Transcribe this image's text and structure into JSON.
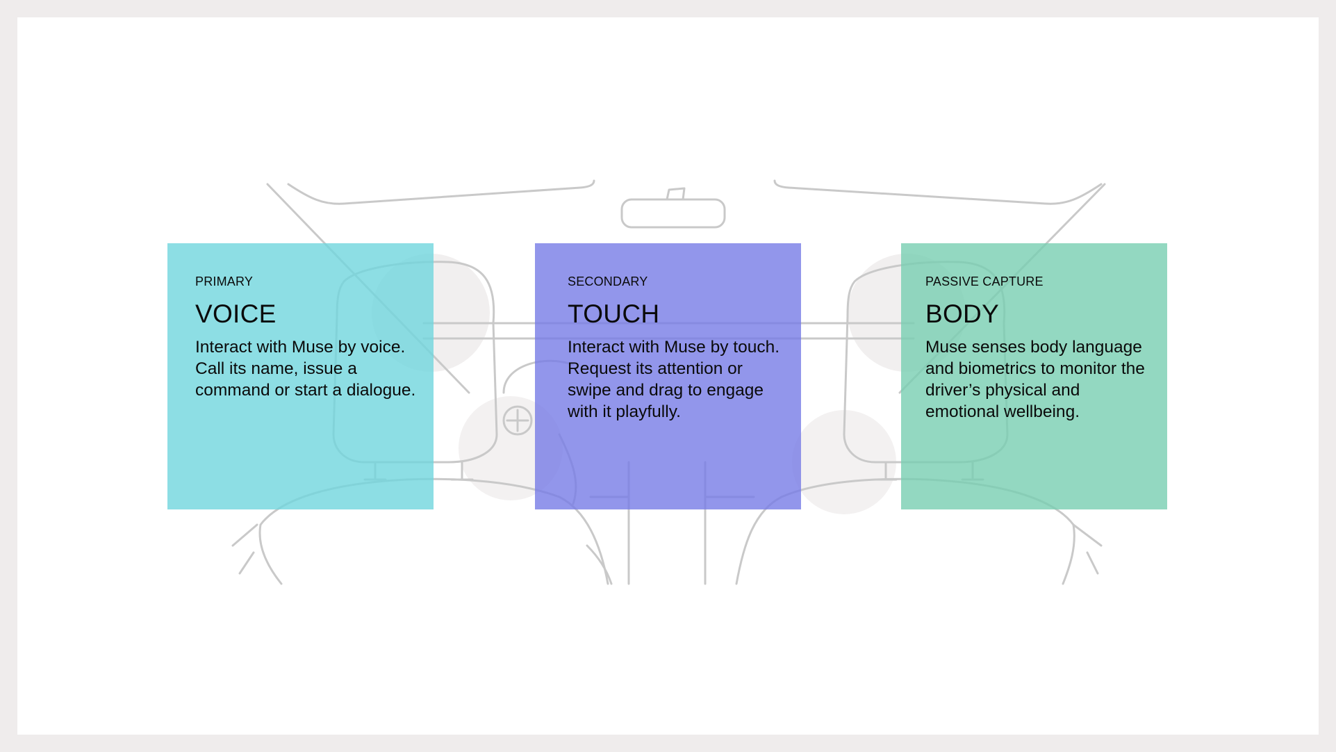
{
  "cards": [
    {
      "category": "PRIMARY",
      "title": "VOICE",
      "description": "Interact with Muse by voice. Call its name, issue a command or start a dialogue.",
      "color": "#8ddde1"
    },
    {
      "category": "SECONDARY",
      "title": "TOUCH",
      "description": "Interact with Muse by touch. Request its attention or swipe and drag to engage with it playfully.",
      "color": "#8f96ea"
    },
    {
      "category": "PASSIVE CAPTURE",
      "title": "BODY",
      "description": "Muse senses body language and biometrics to monitor the driver’s physical and emotional wellbeing.",
      "color": "#8fd6c0"
    }
  ],
  "colors": {
    "frame": "#efecec",
    "slide_background": "#ffffff",
    "line_art": "#c9c9c9"
  }
}
